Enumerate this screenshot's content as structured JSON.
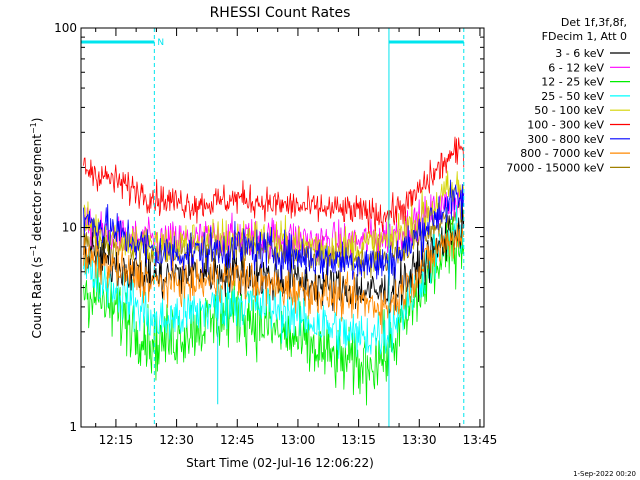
{
  "chart_data": {
    "type": "line",
    "title": "RHESSI Count Rates",
    "xlabel": "Start Time (02-Jul-16 12:06:22)",
    "ylabel": "Count Rate (s⁻¹ detector segment⁻¹)",
    "ylabel_parts": {
      "prefix": "Count Rate (s",
      "sup1": "−1",
      "middle": " detector segment",
      "sup2": "−1",
      "suffix": ")"
    },
    "yscale": "log",
    "ylim": [
      1,
      100
    ],
    "xlim": [
      "12:06:22",
      "13:46:00"
    ],
    "y_ticks": [
      "1",
      "10",
      "100"
    ],
    "x_ticks": [
      "12:15",
      "12:30",
      "12:45",
      "13:00",
      "13:15",
      "13:30",
      "13:45"
    ],
    "legend_header": [
      "Det 1f,3f,8f,",
      "FDecim 1, Att 0"
    ],
    "legend_placement": "right-outside",
    "attenuator_label": "N",
    "attenuator_intervals": [
      [
        "12:06:22",
        "12:24:30"
      ],
      [
        "13:22:30",
        "13:41:00"
      ]
    ],
    "x_times": [
      "12:07",
      "12:15",
      "12:25",
      "12:35",
      "12:45",
      "12:55",
      "13:05",
      "13:15",
      "13:22",
      "13:27",
      "13:32",
      "13:37",
      "13:41"
    ],
    "series": [
      {
        "name": "3 - 6 keV",
        "color": "#000000",
        "values": [
          7.5,
          6.5,
          5.6,
          6.0,
          6.0,
          5.5,
          5.2,
          4.8,
          4.7,
          5.5,
          7.0,
          9.0,
          10.0
        ]
      },
      {
        "name": "6 - 12 keV",
        "color": "#ff00ff",
        "values": [
          10.0,
          9.0,
          8.5,
          8.7,
          9.0,
          9.0,
          8.5,
          8.5,
          9.0,
          10.0,
          11.5,
          13.0,
          14.0
        ]
      },
      {
        "name": "12 - 25 keV",
        "color": "#00ee00",
        "values": [
          5.0,
          3.8,
          2.6,
          3.2,
          3.8,
          3.0,
          2.4,
          2.0,
          2.3,
          3.5,
          5.5,
          7.5,
          9.0
        ]
      },
      {
        "name": "25 - 50 keV",
        "color": "#00ffff",
        "values": [
          6.5,
          5.0,
          3.3,
          3.8,
          4.3,
          3.9,
          3.3,
          2.8,
          3.0,
          4.2,
          6.5,
          8.5,
          10.0
        ]
      },
      {
        "name": "50 - 100 keV",
        "color": "#d4d400",
        "values": [
          10.5,
          9.0,
          8.0,
          8.5,
          9.0,
          8.5,
          8.0,
          8.0,
          8.5,
          10.0,
          12.0,
          15.0,
          16.0
        ]
      },
      {
        "name": "100 - 300 keV",
        "color": "#ff0000",
        "values": [
          20.0,
          17.0,
          14.0,
          13.0,
          14.0,
          13.0,
          12.5,
          12.0,
          11.5,
          13.0,
          17.0,
          22.0,
          25.0
        ]
      },
      {
        "name": "300 - 800 keV",
        "color": "#0000ff",
        "values": [
          11.0,
          9.5,
          7.5,
          7.5,
          8.0,
          7.5,
          7.0,
          6.8,
          6.5,
          8.0,
          10.5,
          13.0,
          14.0
        ]
      },
      {
        "name": "800 - 7000 keV",
        "color": "#ff8800",
        "values": [
          7.0,
          6.2,
          5.2,
          5.3,
          5.6,
          5.0,
          4.7,
          4.3,
          4.0,
          5.0,
          6.8,
          8.5,
          9.5
        ]
      },
      {
        "name": "7000 - 15000 keV",
        "color": "#a08000",
        "values": [
          8.5,
          8.0,
          7.5,
          7.8,
          8.0,
          7.6,
          7.3,
          7.0,
          7.0,
          8.0,
          9.5,
          11.0,
          12.0
        ]
      }
    ]
  },
  "timestamp": "1-Sep-2022 00:20"
}
